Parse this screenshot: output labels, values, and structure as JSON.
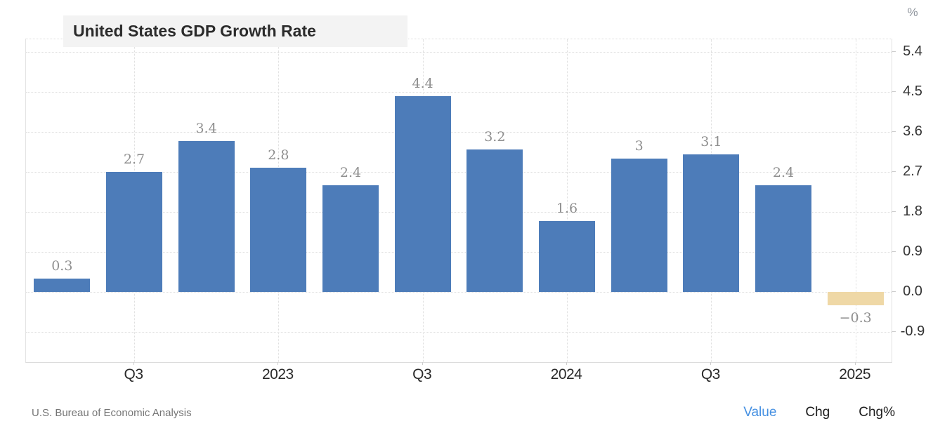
{
  "title": "United States GDP Growth Rate",
  "unit_label": "%",
  "source": "U.S. Bureau of Economic Analysis",
  "toggles": [
    {
      "label": "Value",
      "active": true
    },
    {
      "label": "Chg",
      "active": false
    },
    {
      "label": "Chg%",
      "active": false
    }
  ],
  "colors": {
    "bar_positive": "#4d7cb9",
    "bar_negative": "#efd8a6",
    "value_label": "#8f8f8f",
    "toggle_active": "#4590e2",
    "toggle_inactive": "#1b1b1b",
    "axis_text": "#333333",
    "grid": "#dedede"
  },
  "chart_data": {
    "type": "bar",
    "title": "United States GDP Growth Rate",
    "ylabel": "%",
    "values": [
      0.3,
      2.7,
      3.4,
      2.8,
      2.4,
      4.4,
      3.2,
      1.6,
      3,
      3.1,
      2.4,
      -0.3
    ],
    "bar_labels": [
      "0.3",
      "2.7",
      "3.4",
      "2.8",
      "2.4",
      "4.4",
      "3.2",
      "1.6",
      "3",
      "3.1",
      "2.4",
      "−0.3"
    ],
    "x_ticks": [
      {
        "label": "Q3",
        "slot": 1
      },
      {
        "label": "2023",
        "slot": 3
      },
      {
        "label": "Q3",
        "slot": 5
      },
      {
        "label": "2024",
        "slot": 7
      },
      {
        "label": "Q3",
        "slot": 9
      },
      {
        "label": "2025",
        "slot": 11
      }
    ],
    "y_ticks": [
      {
        "label": "5.4",
        "value": 5.4
      },
      {
        "label": "4.5",
        "value": 4.5
      },
      {
        "label": "3.6",
        "value": 3.6
      },
      {
        "label": "2.7",
        "value": 2.7
      },
      {
        "label": "1.8",
        "value": 1.8
      },
      {
        "label": "0.9",
        "value": 0.9
      },
      {
        "label": "0.0",
        "value": 0.0
      },
      {
        "label": "-0.9",
        "value": -0.9
      }
    ],
    "ylim": [
      -1.6,
      5.7
    ],
    "grid": "dotted",
    "legend_position": "none"
  }
}
